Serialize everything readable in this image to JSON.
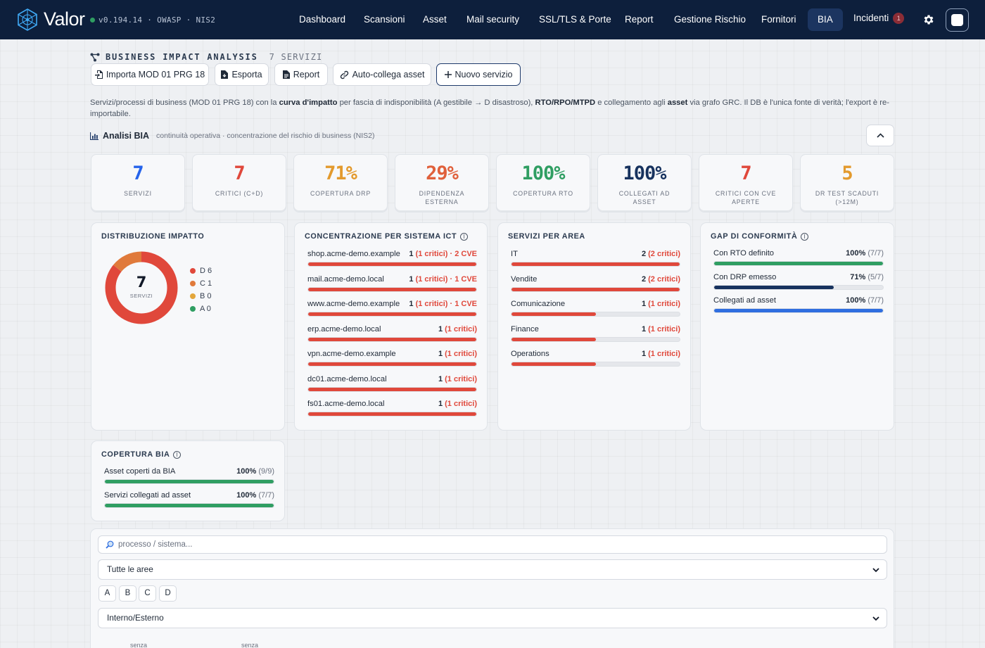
{
  "app": {
    "brand": "Valor",
    "version": "v0.194.14 · OWASP · NIS2"
  },
  "nav": {
    "items": [
      "Dashboard",
      "Scansioni",
      "Asset",
      "Mail security",
      "SSL/TLS & Porte",
      "Report",
      "Gestione Rischio",
      "Fornitori",
      "BIA"
    ],
    "incidents_label": "Incidenti",
    "incidents_count": "1"
  },
  "header": {
    "title": "BUSINESS IMPACT ANALYSIS",
    "count": "7 SERVIZI",
    "buttons": {
      "import": "Importa MOD 01 PRG 18",
      "export": "Esporta",
      "report": "Report",
      "autolink": "Auto-collega asset",
      "new": "Nuovo servizio"
    },
    "description": {
      "p1": "Servizi/processi di business (MOD 01 PRG 18) con la ",
      "b1": "curva d'impatto",
      "p2": " per fascia di indisponibilità (A gestibile → D disastroso), ",
      "b2": "RTO/RPO/MTPD",
      "p3": " e collegamento agli ",
      "b3": "asset",
      "p4": " via grafo GRC. Il DB è l'unica fonte di verità; l'export è re-importabile."
    },
    "analisi_title": "Analisi BIA",
    "analisi_subtitle": "continuità operativa · concentrazione del rischio di business (NIS2)"
  },
  "kpis": [
    {
      "value": "7",
      "label": "SERVIZI",
      "color": "#2563eb"
    },
    {
      "value": "7",
      "label": "CRITICI (C+D)",
      "color": "#e0483b"
    },
    {
      "value": "71%",
      "label": "COPERTURA DRP",
      "color": "#e39a2d"
    },
    {
      "value": "29%",
      "label": "DIPENDENZA ESTERNA",
      "color": "#e0603b"
    },
    {
      "value": "100%",
      "label": "COPERTURA RTO",
      "color": "#2f9e62"
    },
    {
      "value": "100%",
      "label": "COLLEGATI AD ASSET",
      "color": "#17325e"
    },
    {
      "value": "7",
      "label": "CRITICI CON CVE APERTE",
      "color": "#e0483b"
    },
    {
      "value": "5",
      "label": "DR TEST SCADUTI (>12M)",
      "color": "#e39a2d"
    }
  ],
  "distribution": {
    "title": "DISTRIBUZIONE IMPATTO",
    "center_value": "7",
    "center_label": "SERVIZI",
    "legend": [
      {
        "label": "D 6",
        "color": "#e0483b",
        "value": 6
      },
      {
        "label": "C 1",
        "color": "#e07a3b",
        "value": 1
      },
      {
        "label": "B 0",
        "color": "#e3a63b",
        "value": 0
      },
      {
        "label": "A 0",
        "color": "#2f9e62",
        "value": 0
      }
    ]
  },
  "concentration": {
    "title": "CONCENTRAZIONE PER SISTEMA ICT",
    "rows": [
      {
        "name": "shop.acme-demo.example",
        "count": "1",
        "detail": "(1 critici) · 2 CVE",
        "pct": 100
      },
      {
        "name": "mail.acme-demo.local",
        "count": "1",
        "detail": "(1 critici) · 1 CVE",
        "pct": 100
      },
      {
        "name": "www.acme-demo.example",
        "count": "1",
        "detail": "(1 critici) · 1 CVE",
        "pct": 100
      },
      {
        "name": "erp.acme-demo.local",
        "count": "1",
        "detail": "(1 critici)",
        "pct": 100
      },
      {
        "name": "vpn.acme-demo.example",
        "count": "1",
        "detail": "(1 critici)",
        "pct": 100
      },
      {
        "name": "dc01.acme-demo.local",
        "count": "1",
        "detail": "(1 critici)",
        "pct": 100
      },
      {
        "name": "fs01.acme-demo.local",
        "count": "1",
        "detail": "(1 critici)",
        "pct": 100
      }
    ]
  },
  "areas": {
    "title": "SERVIZI PER AREA",
    "rows": [
      {
        "name": "IT",
        "count": "2",
        "detail": "(2 critici)",
        "pct": 100
      },
      {
        "name": "Vendite",
        "count": "2",
        "detail": "(2 critici)",
        "pct": 100
      },
      {
        "name": "Comunicazione",
        "count": "1",
        "detail": "(1 critici)",
        "pct": 50
      },
      {
        "name": "Finance",
        "count": "1",
        "detail": "(1 critici)",
        "pct": 50
      },
      {
        "name": "Operations",
        "count": "1",
        "detail": "(1 critici)",
        "pct": 50
      }
    ]
  },
  "gaps": {
    "title": "GAP DI CONFORMITÀ",
    "rows": [
      {
        "name": "Con RTO definito",
        "pct_label": "100%",
        "ratio": "(7/7)",
        "pct": 100,
        "color": "#2f9e62"
      },
      {
        "name": "Con DRP emesso",
        "pct_label": "71%",
        "ratio": "(5/7)",
        "pct": 71,
        "color": "#17325e"
      },
      {
        "name": "Collegati ad asset",
        "pct_label": "100%",
        "ratio": "(7/7)",
        "pct": 100,
        "color": "#2f6ee0"
      }
    ]
  },
  "coverage": {
    "title": "COPERTURA BIA",
    "rows": [
      {
        "name": "Asset coperti da BIA",
        "pct_label": "100%",
        "ratio": "(9/9)",
        "pct": 100,
        "color": "#2f9e62"
      },
      {
        "name": "Servizi collegati ad asset",
        "pct_label": "100%",
        "ratio": "(7/7)",
        "pct": 100,
        "color": "#2f9e62"
      }
    ]
  },
  "filters": {
    "search_placeholder": "processo / sistema...",
    "area_select": "Tutte le aree",
    "chips": [
      "A",
      "B",
      "C",
      "D"
    ],
    "origin_select": "Interno/Esterno",
    "cut_label_1": "senza",
    "cut_label_2": "senza"
  },
  "colors": {
    "nav_bg": "#0d1f3c",
    "critical": "#e0483b",
    "ok": "#2f9e62"
  }
}
